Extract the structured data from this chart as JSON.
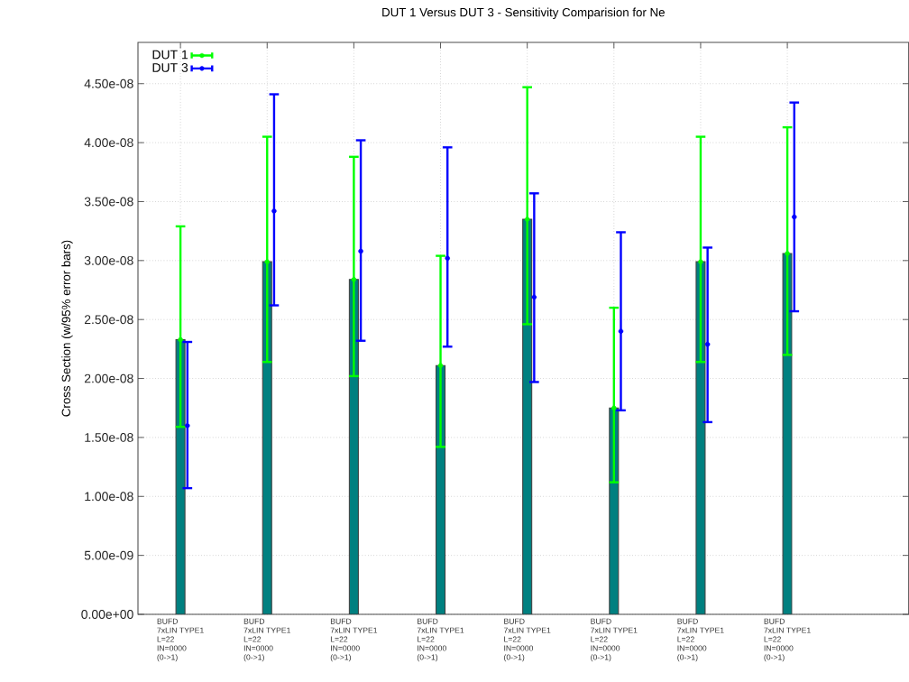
{
  "chart_data": {
    "type": "bar",
    "title": "DUT 1 Versus DUT 3 - Sensitivity Comparision for Ne",
    "ylabel": "Cross Section (w/95% error bars)",
    "categories": [
      "BUFD\n7xLIN  TYPE1\nL=22\nIN=0000\n(0->1)",
      "BUFD\n7xLIN  TYPE1\nL=22\nIN=0000\n(0->1)",
      "BUFD\n7xLIN  TYPE1\nL=22\nIN=0000\n(0->1)",
      "BUFD\n7xLIN  TYPE1\nL=22\nIN=0000\n(0->1)",
      "BUFD\n7xLIN  TYPE1\nL=22\nIN=0000\n(0->1)",
      "BUFD\n7xLIN  TYPE1\nL=22\nIN=0000\n(0->1)",
      "BUFD\n7xLIN  TYPE1\nL=22\nIN=0000\n(0->1)",
      "BUFD\n7xLIN  TYPE1\nL=22\nIN=0000\n(0->1)"
    ],
    "series": [
      {
        "color": "#008080",
        "values": [
          2.33e-08,
          2.99e-08,
          2.84e-08,
          2.11e-08,
          3.35e-08,
          1.75e-08,
          2.99e-08,
          3.06e-08
        ]
      },
      {
        "name": "DUT 1",
        "type": "scatter",
        "color": "#00ff00",
        "values": [
          2.33e-08,
          2.99e-08,
          2.84e-08,
          2.11e-08,
          3.35e-08,
          1.75e-08,
          2.99e-08,
          3.06e-08
        ],
        "errors": [
          [
            1.59e-08,
            3.29e-08
          ],
          [
            2.14e-08,
            4.05e-08
          ],
          [
            2.02e-08,
            3.88e-08
          ],
          [
            1.42e-08,
            3.04e-08
          ],
          [
            2.46e-08,
            4.47e-08
          ],
          [
            1.12e-08,
            2.6e-08
          ],
          [
            2.14e-08,
            4.05e-08
          ],
          [
            2.2e-08,
            4.13e-08
          ]
        ]
      },
      {
        "name": "DUT 3",
        "type": "scatter",
        "color": "#0000ff",
        "values": [
          1.6e-08,
          3.42e-08,
          3.08e-08,
          3.02e-08,
          2.69e-08,
          2.4e-08,
          2.29e-08,
          3.37e-08
        ],
        "errors": [
          [
            1.07e-08,
            2.31e-08
          ],
          [
            2.62e-08,
            4.41e-08
          ],
          [
            2.32e-08,
            4.02e-08
          ],
          [
            2.27e-08,
            3.96e-08
          ],
          [
            1.97e-08,
            3.57e-08
          ],
          [
            1.73e-08,
            3.24e-08
          ],
          [
            1.63e-08,
            3.11e-08
          ],
          [
            2.57e-08,
            4.34e-08
          ]
        ]
      }
    ],
    "ylim": [
      0,
      4.85e-08
    ],
    "yticks": [
      {
        "value": 0,
        "label": "0.00e+00"
      },
      {
        "value": 5e-09,
        "label": "5.00e-09"
      },
      {
        "value": 1e-08,
        "label": "1.00e-08"
      },
      {
        "value": 1.5e-08,
        "label": "1.50e-08"
      },
      {
        "value": 2e-08,
        "label": "2.00e-08"
      },
      {
        "value": 2.5e-08,
        "label": "2.50e-08"
      },
      {
        "value": 3e-08,
        "label": "3.00e-08"
      },
      {
        "value": 3.5e-08,
        "label": "3.50e-08"
      },
      {
        "value": 4e-08,
        "label": "4.00e-08"
      },
      {
        "value": 4.5e-08,
        "label": "4.50e-08"
      }
    ],
    "grid": true,
    "legend": "top left",
    "marker": "circle"
  }
}
